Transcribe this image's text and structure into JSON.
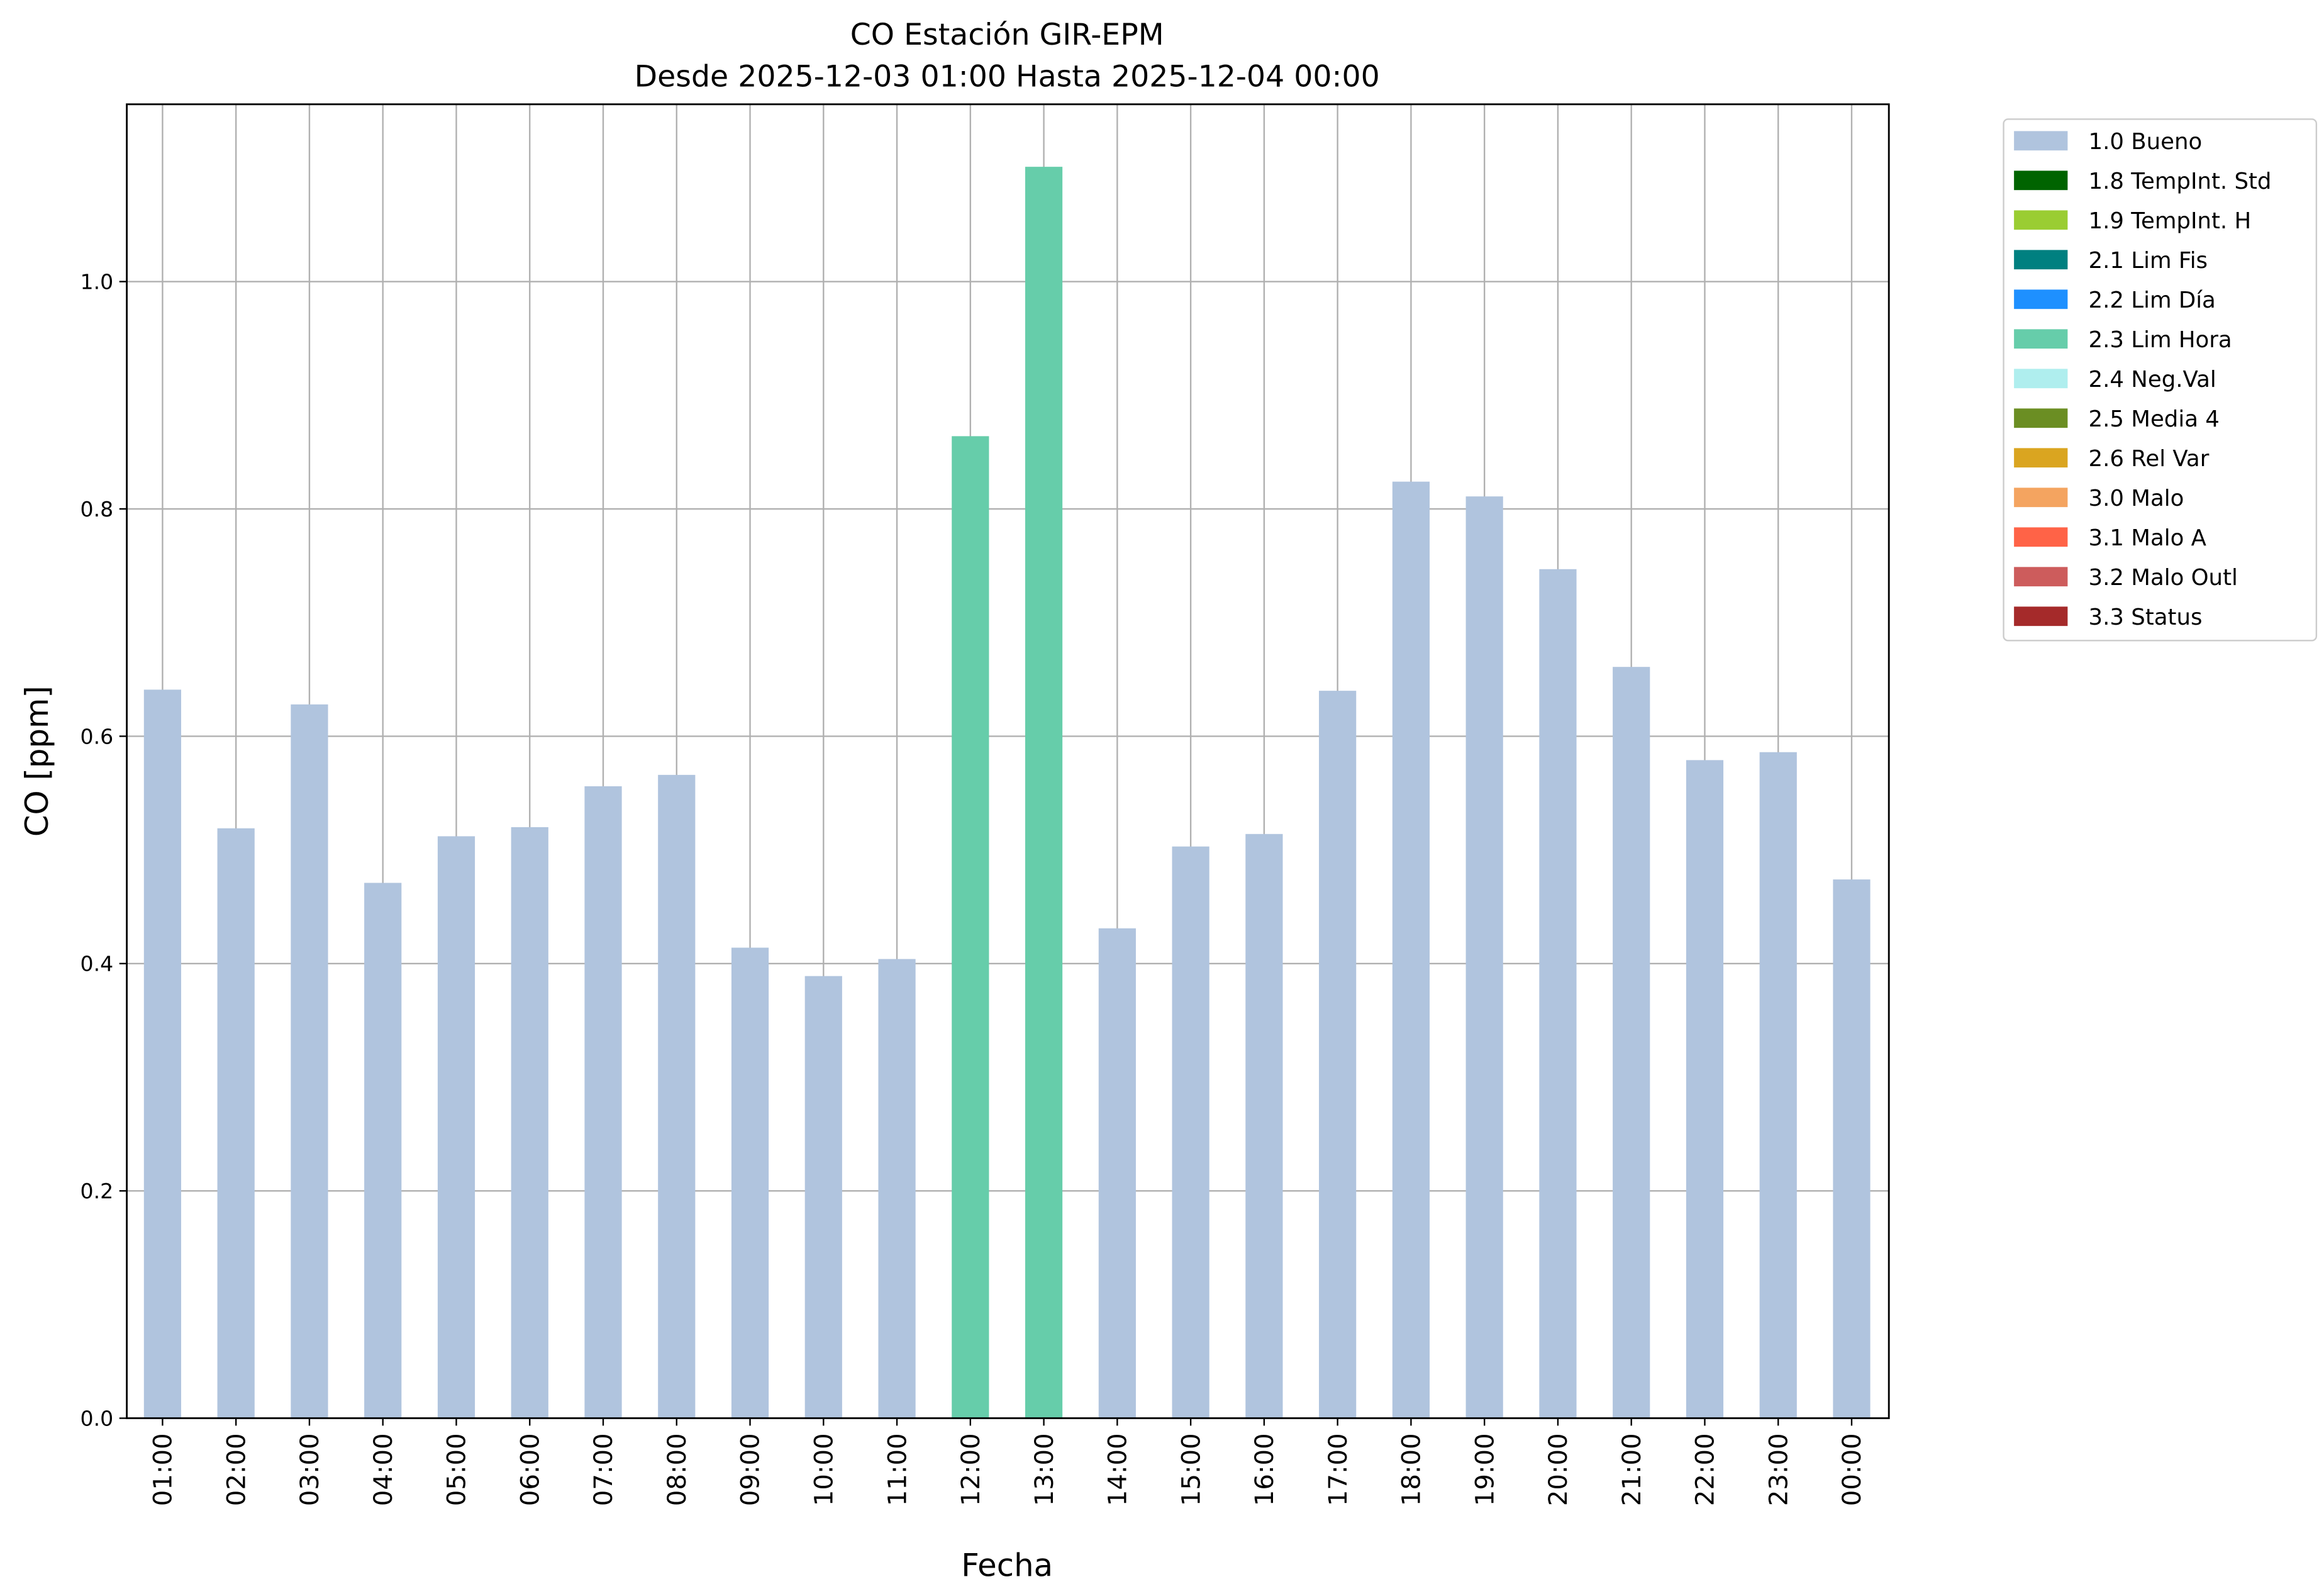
{
  "chart_data": {
    "type": "bar",
    "title": "CO Estación GIR-EPM",
    "subtitle": "Desde 2025-12-03 01:00 Hasta 2025-12-04 00:00",
    "xlabel": "Fecha",
    "ylabel": "CO [ppm]",
    "ylim": [
      0,
      1.156
    ],
    "yticks": [
      "0.0",
      "0.2",
      "0.4",
      "0.6",
      "0.8",
      "1.0"
    ],
    "grid": true,
    "legend_placement": "outside-top-right",
    "categories": [
      "01:00",
      "02:00",
      "03:00",
      "04:00",
      "05:00",
      "06:00",
      "07:00",
      "08:00",
      "09:00",
      "10:00",
      "11:00",
      "12:00",
      "13:00",
      "14:00",
      "15:00",
      "16:00",
      "17:00",
      "18:00",
      "19:00",
      "20:00",
      "21:00",
      "22:00",
      "23:00",
      "00:00"
    ],
    "values": [
      0.641,
      0.519,
      0.628,
      0.471,
      0.512,
      0.52,
      0.556,
      0.566,
      0.414,
      0.389,
      0.404,
      0.864,
      1.101,
      0.431,
      0.503,
      0.514,
      0.64,
      0.824,
      0.811,
      0.747,
      0.661,
      0.579,
      0.586,
      0.474
    ],
    "flags": [
      "1.0 Bueno",
      "1.0 Bueno",
      "1.0 Bueno",
      "1.0 Bueno",
      "1.0 Bueno",
      "1.0 Bueno",
      "1.0 Bueno",
      "1.0 Bueno",
      "1.0 Bueno",
      "1.0 Bueno",
      "1.0 Bueno",
      "2.3 Lim Hora",
      "2.3 Lim Hora",
      "1.0 Bueno",
      "1.0 Bueno",
      "1.0 Bueno",
      "1.0 Bueno",
      "1.0 Bueno",
      "1.0 Bueno",
      "1.0 Bueno",
      "1.0 Bueno",
      "1.0 Bueno",
      "1.0 Bueno",
      "1.0 Bueno"
    ],
    "legend": [
      {
        "label": "1.0 Bueno",
        "color": "#B0C4DE"
      },
      {
        "label": "1.8 TempInt. Std",
        "color": "#006400"
      },
      {
        "label": "1.9 TempInt. H",
        "color": "#9ACD32"
      },
      {
        "label": "2.1 Lim Fis",
        "color": "#008080"
      },
      {
        "label": "2.2 Lim Día",
        "color": "#1E90FF"
      },
      {
        "label": "2.3 Lim Hora",
        "color": "#66CDAA"
      },
      {
        "label": "2.4 Neg.Val",
        "color": "#AFEEEE"
      },
      {
        "label": "2.5 Media 4",
        "color": "#6B8E23"
      },
      {
        "label": "2.6 Rel Var",
        "color": "#DAA520"
      },
      {
        "label": "3.0 Malo",
        "color": "#F4A460"
      },
      {
        "label": "3.1 Malo A",
        "color": "#FF6347"
      },
      {
        "label": "3.2 Malo Outl",
        "color": "#CD5C5C"
      },
      {
        "label": "3.3 Status",
        "color": "#A52A2A"
      }
    ]
  }
}
